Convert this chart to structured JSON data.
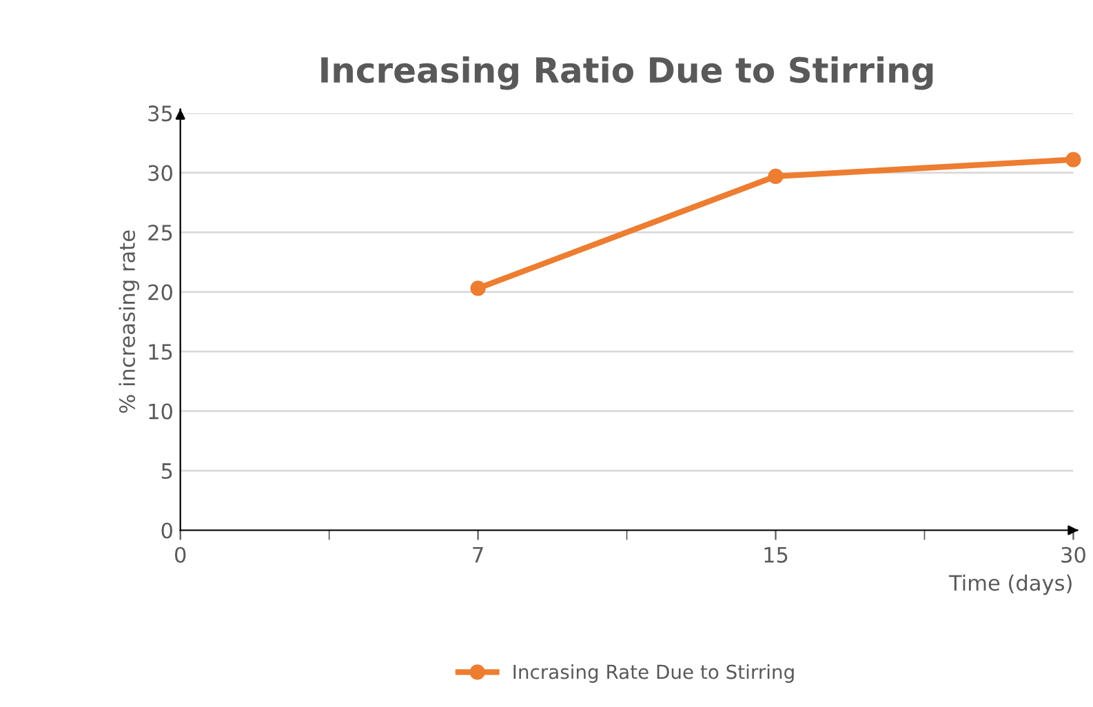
{
  "chart_data": {
    "type": "line",
    "title": "Increasing Ratio Due to Stirring",
    "xlabel": "Time (days)",
    "ylabel": "% increasing rate",
    "categories": [
      "0",
      "7",
      "15",
      "30"
    ],
    "series": [
      {
        "name": "Incrasing Rate Due to Stirring",
        "color": "#ed7d31",
        "values": [
          null,
          20.3,
          29.7,
          31.1
        ]
      }
    ],
    "ylim": [
      0,
      35
    ],
    "yticks": [
      0,
      5,
      10,
      15,
      20,
      25,
      30,
      35
    ],
    "grid": "y",
    "legend": "bottom",
    "marker": "circle",
    "line_style": "solid"
  }
}
